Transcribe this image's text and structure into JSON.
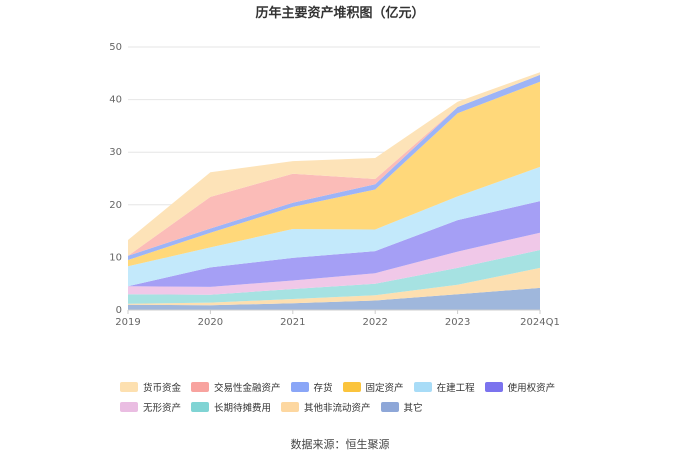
{
  "chart_data": {
    "type": "area",
    "title": "历年主要资产堆积图（亿元）",
    "categories": [
      "2019",
      "2020",
      "2021",
      "2022",
      "2023",
      "2024Q1"
    ],
    "ylim": [
      0,
      50
    ],
    "yticks": [
      0,
      10,
      20,
      30,
      40,
      50
    ],
    "grid": true,
    "legend_position": "bottom",
    "stacked": true,
    "series": [
      {
        "name": "其它",
        "color": "#9fb7dc",
        "values": [
          1.0,
          0.9,
          1.3,
          1.8,
          3.0,
          4.2
        ]
      },
      {
        "name": "其他非流动资产",
        "color": "#fddfb0",
        "values": [
          0.2,
          0.5,
          0.8,
          1.0,
          1.8,
          3.8
        ]
      },
      {
        "name": "长期待摊费用",
        "color": "#a6e2e2",
        "values": [
          1.8,
          1.5,
          1.9,
          2.2,
          3.2,
          3.4
        ]
      },
      {
        "name": "无形资产",
        "color": "#f0c8e8",
        "values": [
          1.5,
          1.5,
          1.6,
          2.0,
          3.1,
          3.3
        ]
      },
      {
        "name": "使用权资产",
        "color": "#a59ff5",
        "values": [
          0.0,
          3.7,
          4.3,
          4.2,
          6.0,
          6.0
        ]
      },
      {
        "name": "在建工程",
        "color": "#c3e9fb",
        "values": [
          3.8,
          3.8,
          5.5,
          4.1,
          4.5,
          6.5
        ]
      },
      {
        "name": "固定资产",
        "color": "#ffd87a",
        "values": [
          1.2,
          2.8,
          4.2,
          7.6,
          15.8,
          16.2
        ]
      },
      {
        "name": "存货",
        "color": "#9db4f7",
        "values": [
          0.8,
          0.8,
          0.8,
          1.0,
          1.2,
          1.3
        ]
      },
      {
        "name": "交易性金融资产",
        "color": "#fbbcb8",
        "values": [
          0.0,
          6.0,
          5.5,
          1.0,
          0.0,
          0.0
        ]
      },
      {
        "name": "货币资金",
        "color": "#fde3b8",
        "values": [
          3.0,
          4.7,
          2.4,
          4.0,
          1.0,
          0.5
        ]
      }
    ]
  },
  "legend": {
    "rows": [
      [
        "货币资金",
        "交易性金融资产",
        "存货",
        "固定资产",
        "在建工程",
        "使用权资产"
      ],
      [
        "无形资产",
        "长期待摊费用",
        "其他非流动资产",
        "其它"
      ]
    ],
    "swatch_colors": {
      "货币资金": "#fde0b0",
      "交易性金融资产": "#f8a39f",
      "存货": "#8aa6f7",
      "固定资产": "#fbc43c",
      "在建工程": "#a8dcf7",
      "使用权资产": "#7b73ee",
      "无形资产": "#eabde2",
      "长期待摊费用": "#80d4d4",
      "其他非流动资产": "#fdd7a0",
      "其它": "#8ea7d8"
    }
  },
  "source": "数据来源：恒生聚源"
}
